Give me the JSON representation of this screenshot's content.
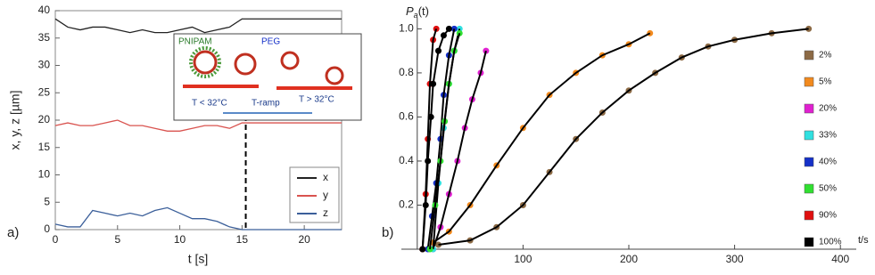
{
  "chart_data": [
    {
      "type": "line",
      "panel_label": "a)",
      "xlabel": "t [s]",
      "ylabel": "x, y, z [µm]",
      "x": [
        0,
        1,
        2,
        3,
        4,
        5,
        6,
        7,
        8,
        9,
        10,
        11,
        12,
        13,
        14,
        15,
        16,
        17,
        18,
        19,
        20,
        21,
        22,
        23
      ],
      "series": [
        {
          "name": "x",
          "color": "#222222",
          "values": [
            38.5,
            37,
            36.5,
            37,
            37,
            36.5,
            36,
            36.5,
            36,
            36,
            36.5,
            37,
            36,
            36.5,
            37,
            38.5,
            38.5,
            38.5,
            38.5,
            38.5,
            38.5,
            38.5,
            38.5,
            38.5
          ]
        },
        {
          "name": "y",
          "color": "#d9534f",
          "values": [
            19,
            19.5,
            19,
            19,
            19.5,
            20,
            19,
            19,
            18.5,
            18,
            18,
            18.5,
            19,
            19,
            18.5,
            19.5,
            19.5,
            19.5,
            19.5,
            19.5,
            19.5,
            19.5,
            19.5,
            19.5
          ]
        },
        {
          "name": "z",
          "color": "#3b5f9a",
          "values": [
            1,
            0.5,
            0.5,
            3.5,
            3,
            2.5,
            3,
            2.5,
            3.5,
            4,
            3,
            2,
            2,
            1.5,
            0.5,
            0,
            0,
            0,
            0,
            0,
            0,
            0,
            0,
            0
          ]
        }
      ],
      "xlim": [
        0,
        23
      ],
      "ylim": [
        0,
        40
      ],
      "xticks": [
        0,
        5,
        10,
        15,
        20
      ],
      "yticks": [
        0,
        5,
        10,
        15,
        20,
        25,
        30,
        35,
        40
      ],
      "marker_x": 15.3,
      "inset": {
        "polymer_1": "PNIPAM",
        "polymer_2": "PEG",
        "cold": "T < 32°C",
        "ramp": "T-ramp",
        "hot": "T > 32°C"
      }
    },
    {
      "type": "scatter",
      "panel_label": "b)",
      "xlabel": "t/s",
      "ylabel": {
        "main": "P",
        "sub": "a",
        "rest": "(t)"
      },
      "xlim": [
        -15,
        415
      ],
      "ylim": [
        0,
        1.05
      ],
      "xticks": [
        100,
        200,
        300,
        400
      ],
      "yticks": [
        {
          "value": 0.2,
          "label": "0.2"
        },
        {
          "value": 0.4,
          "label": "0.4"
        },
        {
          "value": 0.6,
          "label": "0.6"
        },
        {
          "value": 0.8,
          "label": "0.8"
        },
        {
          "value": 1,
          "label": "1.0"
        }
      ],
      "series": [
        {
          "name": "2%",
          "color": "#8c6a45",
          "x": [
            20,
            50,
            75,
            100,
            125,
            150,
            175,
            200,
            225,
            250,
            275,
            300,
            335,
            370
          ],
          "values": [
            0.02,
            0.04,
            0.1,
            0.2,
            0.35,
            0.5,
            0.62,
            0.72,
            0.8,
            0.87,
            0.92,
            0.95,
            0.98,
            1.0
          ]
        },
        {
          "name": "5%",
          "color": "#f28a1e",
          "x": [
            15,
            30,
            50,
            75,
            100,
            125,
            150,
            175,
            200,
            220
          ],
          "values": [
            0.03,
            0.08,
            0.2,
            0.38,
            0.55,
            0.7,
            0.8,
            0.88,
            0.93,
            0.98
          ]
        },
        {
          "name": "20%",
          "color": "#e020d0",
          "x": [
            15,
            22,
            30,
            38,
            45,
            52,
            60,
            65
          ],
          "values": [
            0.0,
            0.1,
            0.25,
            0.4,
            0.55,
            0.68,
            0.8,
            0.9
          ]
        },
        {
          "name": "33%",
          "color": "#30e0e0",
          "x": [
            15,
            20,
            25,
            30,
            35,
            40
          ],
          "values": [
            0.0,
            0.3,
            0.55,
            0.75,
            0.9,
            1.0
          ]
        },
        {
          "name": "40%",
          "color": "#1530c8",
          "x": [
            10,
            14,
            18,
            22,
            25,
            30,
            35
          ],
          "values": [
            0.0,
            0.15,
            0.3,
            0.5,
            0.7,
            0.88,
            1.0
          ]
        },
        {
          "name": "50%",
          "color": "#30e030",
          "x": [
            12,
            17,
            22,
            26,
            30,
            35,
            40
          ],
          "values": [
            0.0,
            0.2,
            0.4,
            0.58,
            0.75,
            0.9,
            0.98
          ]
        },
        {
          "name": "90%",
          "color": "#e01010",
          "x": [
            5,
            8,
            10,
            12,
            15,
            18
          ],
          "values": [
            0.0,
            0.25,
            0.5,
            0.75,
            0.95,
            1.0
          ]
        },
        {
          "name": "100%",
          "color": "#000000",
          "x": [
            5,
            8,
            10,
            13,
            15,
            20,
            25,
            30
          ],
          "values": [
            0.0,
            0.2,
            0.4,
            0.6,
            0.75,
            0.9,
            0.97,
            1.0
          ]
        }
      ]
    }
  ]
}
